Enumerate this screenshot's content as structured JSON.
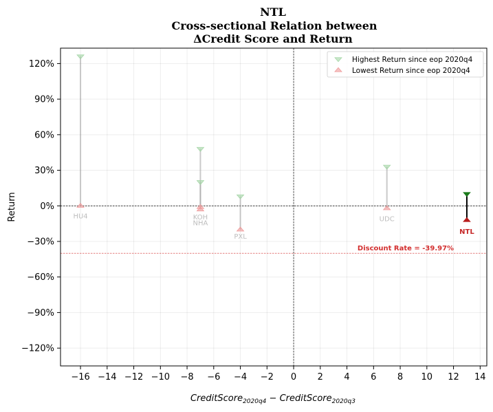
{
  "chart_data": {
    "type": "scatter",
    "title_lines": [
      "NTL",
      "Cross-sectional Relation between",
      "ΔCredit Score and Return"
    ],
    "xlabel": {
      "a": "CreditScore",
      "a_sub": "2020q4",
      "minus": " − ",
      "b": "CreditScore",
      "b_sub": "2020q3"
    },
    "ylabel": "Return",
    "xlim": [
      -17.5,
      14.5
    ],
    "ylim": [
      -135,
      133
    ],
    "x_ticks": [
      -16,
      -14,
      -12,
      -10,
      -8,
      -6,
      -4,
      -2,
      0,
      2,
      4,
      6,
      8,
      10,
      12,
      14
    ],
    "x_tick_labels": [
      "−16",
      "−14",
      "−12",
      "−10",
      "−8",
      "−6",
      "−4",
      "−2",
      "0",
      "2",
      "4",
      "6",
      "8",
      "10",
      "12",
      "14"
    ],
    "y_ticks": [
      -120,
      -90,
      -60,
      -30,
      0,
      30,
      60,
      90,
      120
    ],
    "y_tick_labels": [
      "−120%",
      "−90%",
      "−60%",
      "−30%",
      "0%",
      "30%",
      "60%",
      "90%",
      "120%"
    ],
    "grid": true,
    "legend": {
      "placement": "top-right",
      "entries": [
        {
          "label": "Highest Return since eop 2020q4",
          "marker": "triangle-down",
          "color": "#a5d6a7"
        },
        {
          "label": "Lowest Return since eop 2020q4",
          "marker": "triangle-up",
          "color": "#ef9a9a"
        }
      ]
    },
    "points": [
      {
        "label": "HU4",
        "x": -16,
        "high": 126,
        "low": 0
      },
      {
        "label": "KOH",
        "x": -7,
        "high": 48,
        "low": -1
      },
      {
        "label": "NHA",
        "x": -7,
        "high": 20,
        "low": -3
      },
      {
        "label": "PXL",
        "x": -4,
        "high": 8,
        "low": -20
      },
      {
        "label": "UDC",
        "x": 7,
        "high": 33,
        "low": -2
      }
    ],
    "focus": {
      "label": "NTL",
      "x": 13,
      "high": 10,
      "low": -12
    },
    "discount_rate": {
      "value": -39.97,
      "label": "Discount Rate = -39.97%"
    },
    "colors": {
      "high": "#a5d6a7",
      "low": "#ef9a9a",
      "focus_high": "#1b7a1b",
      "focus_low": "#b71c1c",
      "discount": "#d32f2f",
      "stem": "#9e9e9e"
    }
  }
}
